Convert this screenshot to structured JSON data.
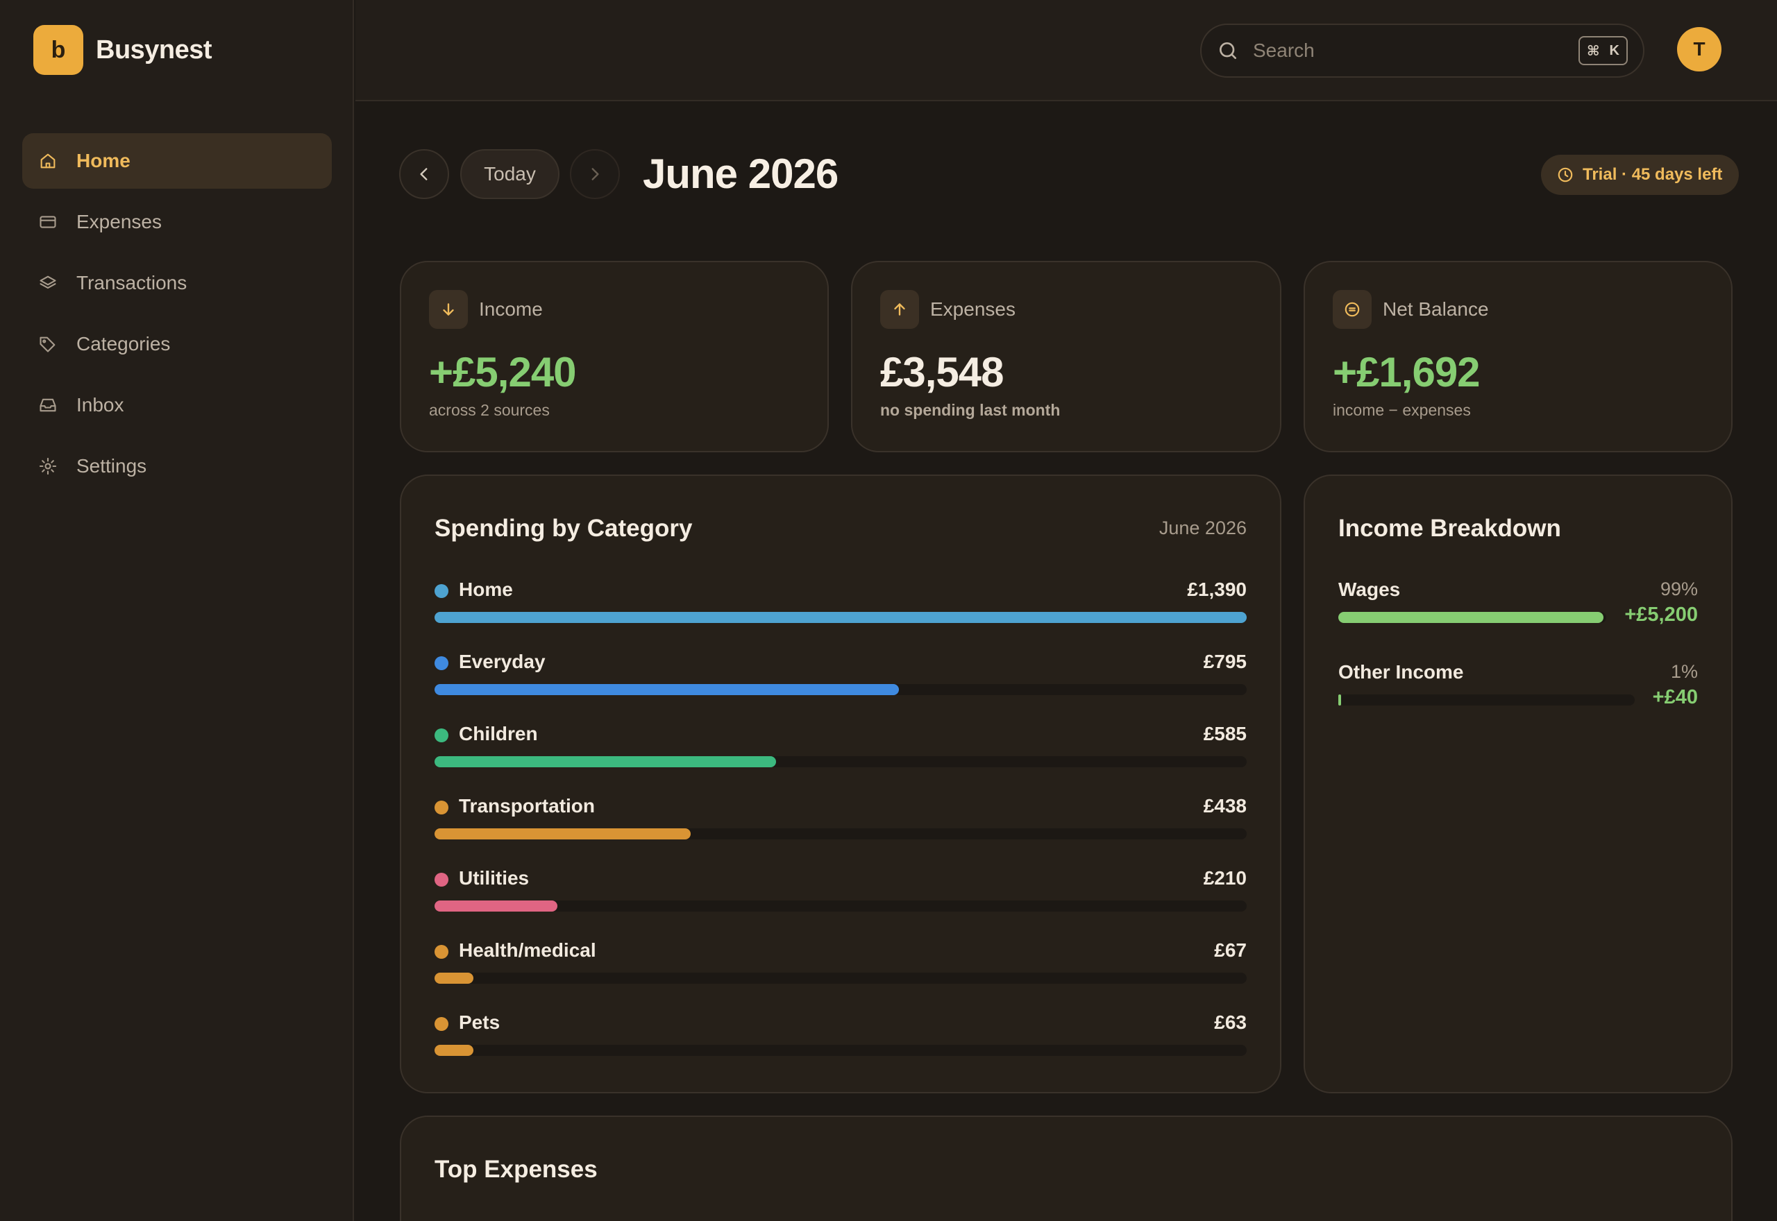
{
  "app": {
    "name": "Busynest",
    "logo_letter": "b"
  },
  "sidebar": {
    "items": [
      {
        "label": "Home",
        "icon": "home-icon",
        "active": true
      },
      {
        "label": "Expenses",
        "icon": "card-icon",
        "active": false
      },
      {
        "label": "Transactions",
        "icon": "layers-icon",
        "active": false
      },
      {
        "label": "Categories",
        "icon": "tag-icon",
        "active": false
      },
      {
        "label": "Inbox",
        "icon": "inbox-icon",
        "active": false
      },
      {
        "label": "Settings",
        "icon": "gear-icon",
        "active": false
      }
    ]
  },
  "topbar": {
    "search_placeholder": "Search",
    "shortcut_mod": "⌘",
    "shortcut_key": "K",
    "avatar_initial": "T"
  },
  "header": {
    "today_label": "Today",
    "title": "June 2026",
    "trial_label": "Trial · 45 days left"
  },
  "stats": {
    "income": {
      "label": "Income",
      "value": "+£5,240",
      "sub": "across 2 sources"
    },
    "expenses": {
      "label": "Expenses",
      "value": "£3,548",
      "sub": "no spending last month"
    },
    "net": {
      "label": "Net Balance",
      "value": "+£1,692",
      "sub": "income − expenses"
    }
  },
  "spending": {
    "title": "Spending by Category",
    "period": "June 2026",
    "categories": [
      {
        "name": "Home",
        "amount": "£1,390",
        "value": 1390,
        "color": "#4ea3d1"
      },
      {
        "name": "Everyday",
        "amount": "£795",
        "value": 795,
        "color": "#3f8ae0"
      },
      {
        "name": "Children",
        "amount": "£585",
        "value": 585,
        "color": "#3cb97f"
      },
      {
        "name": "Transportation",
        "amount": "£438",
        "value": 438,
        "color": "#d99434"
      },
      {
        "name": "Utilities",
        "amount": "£210",
        "value": 210,
        "color": "#e06583"
      },
      {
        "name": "Health/medical",
        "amount": "£67",
        "value": 67,
        "color": "#d99434"
      },
      {
        "name": "Pets",
        "amount": "£63",
        "value": 63,
        "color": "#d99434"
      }
    ]
  },
  "income_breakdown": {
    "title": "Income Breakdown",
    "items": [
      {
        "name": "Wages",
        "percent": "99%",
        "fraction": 0.99,
        "amount": "+£5,200"
      },
      {
        "name": "Other Income",
        "percent": "1%",
        "fraction": 0.01,
        "amount": "+£40"
      }
    ]
  },
  "top_expenses": {
    "title": "Top Expenses"
  },
  "colors": {
    "accent": "#ecab3c",
    "positive": "#86cd72",
    "background": "#1d1915",
    "card": "#262019"
  }
}
